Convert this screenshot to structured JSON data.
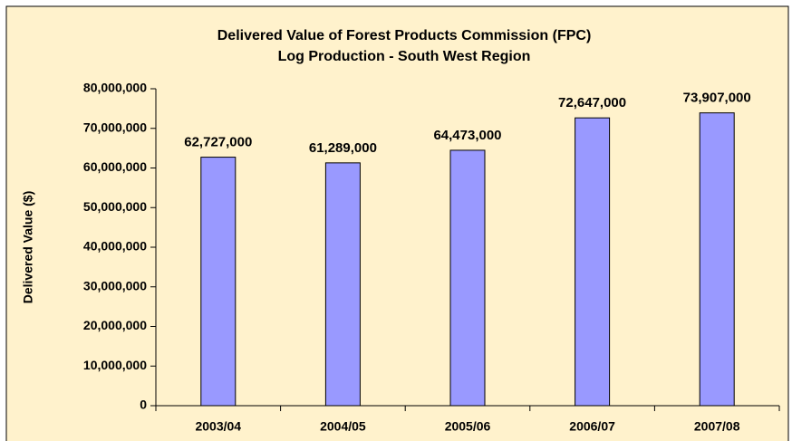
{
  "chart_data": {
    "type": "bar",
    "title": [
      "Delivered Value of Forest Products Commission (FPC)",
      "Log Production - South West Region"
    ],
    "y_label": "Delivered Value ($)",
    "categories": [
      "2003/04",
      "2004/05",
      "2005/06",
      "2006/07",
      "2007/08"
    ],
    "values": [
      62727000,
      61289000,
      64473000,
      72647000,
      73907000
    ],
    "value_labels": [
      "62,727,000",
      "61,289,000",
      "64,473,000",
      "72,647,000",
      "73,907,000"
    ],
    "color": "#9999ff",
    "ylim": [
      0,
      80000000
    ],
    "yticks": [
      0,
      {
        "value": 10000000,
        "label": "10,000,000"
      },
      {
        "value": 20000000,
        "label": "20,000,000"
      },
      {
        "value": 30000000,
        "label": "30,000,000"
      },
      {
        "value": 40000000,
        "label": "40,000,000"
      },
      {
        "value": 50000000,
        "label": "50,000,000"
      },
      {
        "value": 60000000,
        "label": "60,000,000"
      },
      {
        "value": 70000000,
        "label": "70,000,000"
      },
      {
        "value": 80000000,
        "label": "80,000,000"
      }
    ],
    "grid": false
  }
}
